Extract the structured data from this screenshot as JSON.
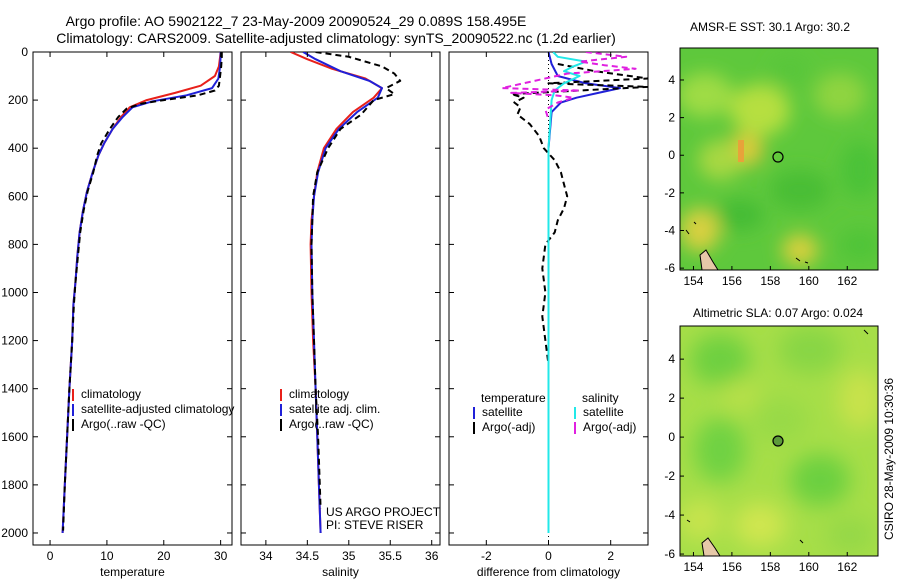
{
  "title_line1": "Argo profile: AO 5902122_7 23-May-2009 20090524_29 0.089S 158.495E",
  "title_line2": "Climatology: CARS2009. Satellite-adjusted climatology: synTS_20090522.nc (1.2d earlier)",
  "side_caption": "CSIRO 28-May-2009 10:30:36",
  "colors": {
    "climatology": "#e8201a",
    "satellite": "#2020d8",
    "argo": "#000000",
    "sal_satellite": "#22e8e8",
    "sal_argo": "#e020e0"
  },
  "chart_data": [
    {
      "type": "line",
      "id": "temperature",
      "xlabel": "temperature",
      "xlim": [
        -3,
        32
      ],
      "ylim": [
        2050,
        0
      ],
      "xticks": [
        0,
        10,
        20,
        30
      ],
      "yticks": [
        0,
        200,
        400,
        600,
        800,
        1000,
        1200,
        1400,
        1600,
        1800,
        2000
      ],
      "legend": [
        "climatology",
        "satellite-adjusted climatology",
        "Argo(..raw -QC)"
      ],
      "series": [
        {
          "name": "climatology",
          "style": "solid",
          "points": [
            [
              30.0,
              0
            ],
            [
              29.9,
              20
            ],
            [
              29.7,
              60
            ],
            [
              29.0,
              100
            ],
            [
              26.5,
              140
            ],
            [
              22.0,
              170
            ],
            [
              17.0,
              200
            ],
            [
              14.0,
              230
            ],
            [
              12.5,
              270
            ],
            [
              11.0,
              320
            ],
            [
              9.5,
              380
            ],
            [
              8.5,
              430
            ],
            [
              7.5,
              500
            ],
            [
              6.5,
              580
            ],
            [
              5.8,
              660
            ],
            [
              5.2,
              750
            ],
            [
              4.8,
              850
            ],
            [
              4.5,
              950
            ],
            [
              4.1,
              1050
            ],
            [
              3.9,
              1200
            ],
            [
              3.4,
              1400
            ],
            [
              3.0,
              1600
            ],
            [
              2.6,
              1800
            ],
            [
              2.2,
              2000
            ]
          ]
        },
        {
          "name": "satellite",
          "style": "solid",
          "points": [
            [
              30.0,
              0
            ],
            [
              30.0,
              20
            ],
            [
              29.9,
              60
            ],
            [
              29.6,
              110
            ],
            [
              28.5,
              150
            ],
            [
              24.0,
              180
            ],
            [
              18.0,
              205
            ],
            [
              14.5,
              230
            ],
            [
              12.8,
              270
            ],
            [
              11.0,
              320
            ],
            [
              9.5,
              380
            ],
            [
              8.5,
              430
            ],
            [
              7.5,
              500
            ],
            [
              6.5,
              580
            ],
            [
              5.8,
              660
            ],
            [
              5.2,
              750
            ],
            [
              4.8,
              850
            ],
            [
              4.5,
              950
            ],
            [
              4.1,
              1050
            ],
            [
              3.9,
              1200
            ],
            [
              3.4,
              1400
            ],
            [
              3.0,
              1600
            ],
            [
              2.6,
              1800
            ],
            [
              2.2,
              2000
            ]
          ]
        },
        {
          "name": "argo",
          "style": "dashed",
          "points": [
            [
              30.2,
              0
            ],
            [
              30.2,
              20
            ],
            [
              30.1,
              60
            ],
            [
              29.9,
              100
            ],
            [
              29.7,
              140
            ],
            [
              29.0,
              160
            ],
            [
              26.0,
              180
            ],
            [
              20.0,
              200
            ],
            [
              16.0,
              215
            ],
            [
              13.5,
              235
            ],
            [
              12.0,
              270
            ],
            [
              10.5,
              320
            ],
            [
              9.0,
              380
            ],
            [
              8.3,
              430
            ],
            [
              7.6,
              500
            ],
            [
              6.6,
              580
            ],
            [
              5.9,
              660
            ],
            [
              5.3,
              750
            ],
            [
              4.9,
              850
            ],
            [
              4.5,
              950
            ],
            [
              4.2,
              1050
            ],
            [
              3.9,
              1200
            ],
            [
              3.4,
              1400
            ],
            [
              3.0,
              1600
            ],
            [
              2.6,
              1800
            ],
            [
              2.3,
              1990
            ]
          ]
        }
      ],
      "annotations": []
    },
    {
      "type": "line",
      "id": "salinity",
      "xlabel": "salinity",
      "xlim": [
        33.7,
        36.1
      ],
      "ylim": [
        2050,
        0
      ],
      "xticks": [
        34,
        34.5,
        35,
        35.5,
        36
      ],
      "yticks": [],
      "legend": [
        "climatology",
        "satellite adj. clim.",
        "Argo(..raw -QC)"
      ],
      "series": [
        {
          "name": "climatology",
          "style": "solid",
          "points": [
            [
              34.3,
              0
            ],
            [
              34.5,
              30
            ],
            [
              34.8,
              70
            ],
            [
              35.2,
              110
            ],
            [
              35.4,
              150
            ],
            [
              35.3,
              190
            ],
            [
              35.05,
              250
            ],
            [
              34.85,
              320
            ],
            [
              34.7,
              400
            ],
            [
              34.62,
              500
            ],
            [
              34.58,
              600
            ],
            [
              34.55,
              700
            ],
            [
              34.54,
              800
            ],
            [
              34.55,
              1000
            ],
            [
              34.57,
              1200
            ],
            [
              34.6,
              1400
            ],
            [
              34.62,
              1600
            ],
            [
              34.64,
              1800
            ],
            [
              34.66,
              2000
            ]
          ]
        },
        {
          "name": "satellite",
          "style": "solid",
          "points": [
            [
              34.45,
              0
            ],
            [
              34.6,
              30
            ],
            [
              34.9,
              80
            ],
            [
              35.25,
              120
            ],
            [
              35.4,
              150
            ],
            [
              35.35,
              190
            ],
            [
              35.1,
              250
            ],
            [
              34.88,
              320
            ],
            [
              34.72,
              400
            ],
            [
              34.63,
              500
            ],
            [
              34.58,
              600
            ],
            [
              34.56,
              700
            ],
            [
              34.55,
              800
            ],
            [
              34.56,
              1000
            ],
            [
              34.58,
              1200
            ],
            [
              34.6,
              1400
            ],
            [
              34.62,
              1600
            ],
            [
              34.64,
              1800
            ],
            [
              34.66,
              2000
            ]
          ]
        },
        {
          "name": "argo",
          "style": "dashed",
          "points": [
            [
              34.6,
              0
            ],
            [
              35.0,
              20
            ],
            [
              35.4,
              60
            ],
            [
              35.55,
              90
            ],
            [
              35.62,
              120
            ],
            [
              35.45,
              150
            ],
            [
              35.55,
              175
            ],
            [
              35.3,
              200
            ],
            [
              35.15,
              260
            ],
            [
              34.9,
              320
            ],
            [
              34.75,
              400
            ],
            [
              34.62,
              500
            ],
            [
              34.57,
              600
            ],
            [
              34.56,
              700
            ],
            [
              34.55,
              800
            ],
            [
              34.56,
              1000
            ],
            [
              34.58,
              1200
            ],
            [
              34.6,
              1400
            ],
            [
              34.63,
              1600
            ],
            [
              34.65,
              1800
            ],
            [
              34.66,
              1900
            ]
          ]
        }
      ],
      "annotations": [
        "US ARGO PROJECT",
        "PI: STEVE RISER"
      ]
    },
    {
      "type": "line",
      "id": "difference",
      "xlabel": "difference from climatology",
      "xlim": [
        -3.2,
        3.2
      ],
      "ylim": [
        2050,
        0
      ],
      "xticks": [
        -2,
        0,
        2
      ],
      "yticks": [],
      "legend_headers": [
        "temperature",
        "salinity"
      ],
      "legend": [
        "satellite",
        "Argo(-adj)",
        "satellite",
        "Argo(-adj)"
      ],
      "series": [
        {
          "name": "temp satellite",
          "style": "solid",
          "points": [
            [
              0.0,
              0
            ],
            [
              0.1,
              50
            ],
            [
              0.3,
              100
            ],
            [
              1.2,
              130
            ],
            [
              2.3,
              150
            ],
            [
              1.6,
              170
            ],
            [
              0.9,
              190
            ],
            [
              0.4,
              210
            ],
            [
              0.1,
              250
            ],
            [
              0.0,
              400
            ],
            [
              0.0,
              2000
            ]
          ]
        },
        {
          "name": "temp argo",
          "style": "dashed",
          "points": [
            [
              0.3,
              50
            ],
            [
              1.5,
              80
            ],
            [
              3.2,
              110
            ],
            [
              0.0,
              130
            ],
            [
              3.2,
              145
            ],
            [
              1.0,
              160
            ],
            [
              -1.2,
              175
            ],
            [
              -0.8,
              190
            ],
            [
              -1.1,
              210
            ],
            [
              -0.9,
              230
            ],
            [
              -1.0,
              260
            ],
            [
              -0.6,
              300
            ],
            [
              -0.3,
              350
            ],
            [
              -0.15,
              400
            ],
            [
              0.2,
              450
            ],
            [
              0.4,
              500
            ],
            [
              0.5,
              550
            ],
            [
              0.6,
              600
            ],
            [
              0.5,
              650
            ],
            [
              0.3,
              700
            ],
            [
              0.2,
              750
            ],
            [
              -0.1,
              800
            ],
            [
              -0.2,
              900
            ],
            [
              -0.1,
              1000
            ],
            [
              -0.2,
              1100
            ],
            [
              -0.1,
              1200
            ],
            [
              0.0,
              1300
            ],
            [
              0.0,
              1500
            ],
            [
              0.0,
              1700
            ],
            [
              0.0,
              1900
            ],
            [
              0.0,
              1990
            ]
          ]
        },
        {
          "name": "sal satellite",
          "style": "solid",
          "points": [
            [
              0.15,
              0
            ],
            [
              0.3,
              20
            ],
            [
              1.2,
              40
            ],
            [
              0.8,
              60
            ],
            [
              0.5,
              80
            ],
            [
              1.0,
              100
            ],
            [
              0.5,
              130
            ],
            [
              0.2,
              160
            ],
            [
              0.1,
              200
            ],
            [
              0.05,
              300
            ],
            [
              0.0,
              400
            ],
            [
              0.0,
              700
            ],
            [
              0.0,
              1000
            ],
            [
              0.0,
              1500
            ],
            [
              0.0,
              2000
            ]
          ]
        },
        {
          "name": "sal argo",
          "style": "dashed",
          "points": [
            [
              1.2,
              0
            ],
            [
              2.5,
              20
            ],
            [
              1.0,
              40
            ],
            [
              1.8,
              55
            ],
            [
              2.8,
              70
            ],
            [
              0.6,
              90
            ],
            [
              -1.5,
              150
            ],
            [
              1.0,
              160
            ],
            [
              -1.2,
              170
            ],
            [
              0.2,
              180
            ],
            [
              0.8,
              190
            ],
            [
              0.3,
              210
            ],
            [
              -0.1,
              240
            ],
            [
              0.0,
              280
            ]
          ]
        }
      ],
      "annotations": []
    }
  ],
  "maps": [
    {
      "id": "sst",
      "title": "AMSR-E SST: 30.1 Argo: 30.2",
      "xticks": [
        154,
        156,
        158,
        160,
        162
      ],
      "yticks": [
        4,
        2,
        0,
        -2,
        -4,
        -6
      ]
    },
    {
      "id": "sla",
      "title": "Altimetric SLA: 0.07 Argo: 0.024",
      "xticks": [
        154,
        156,
        158,
        160,
        162
      ],
      "yticks": [
        4,
        2,
        0,
        -2,
        -4,
        -6
      ]
    }
  ]
}
